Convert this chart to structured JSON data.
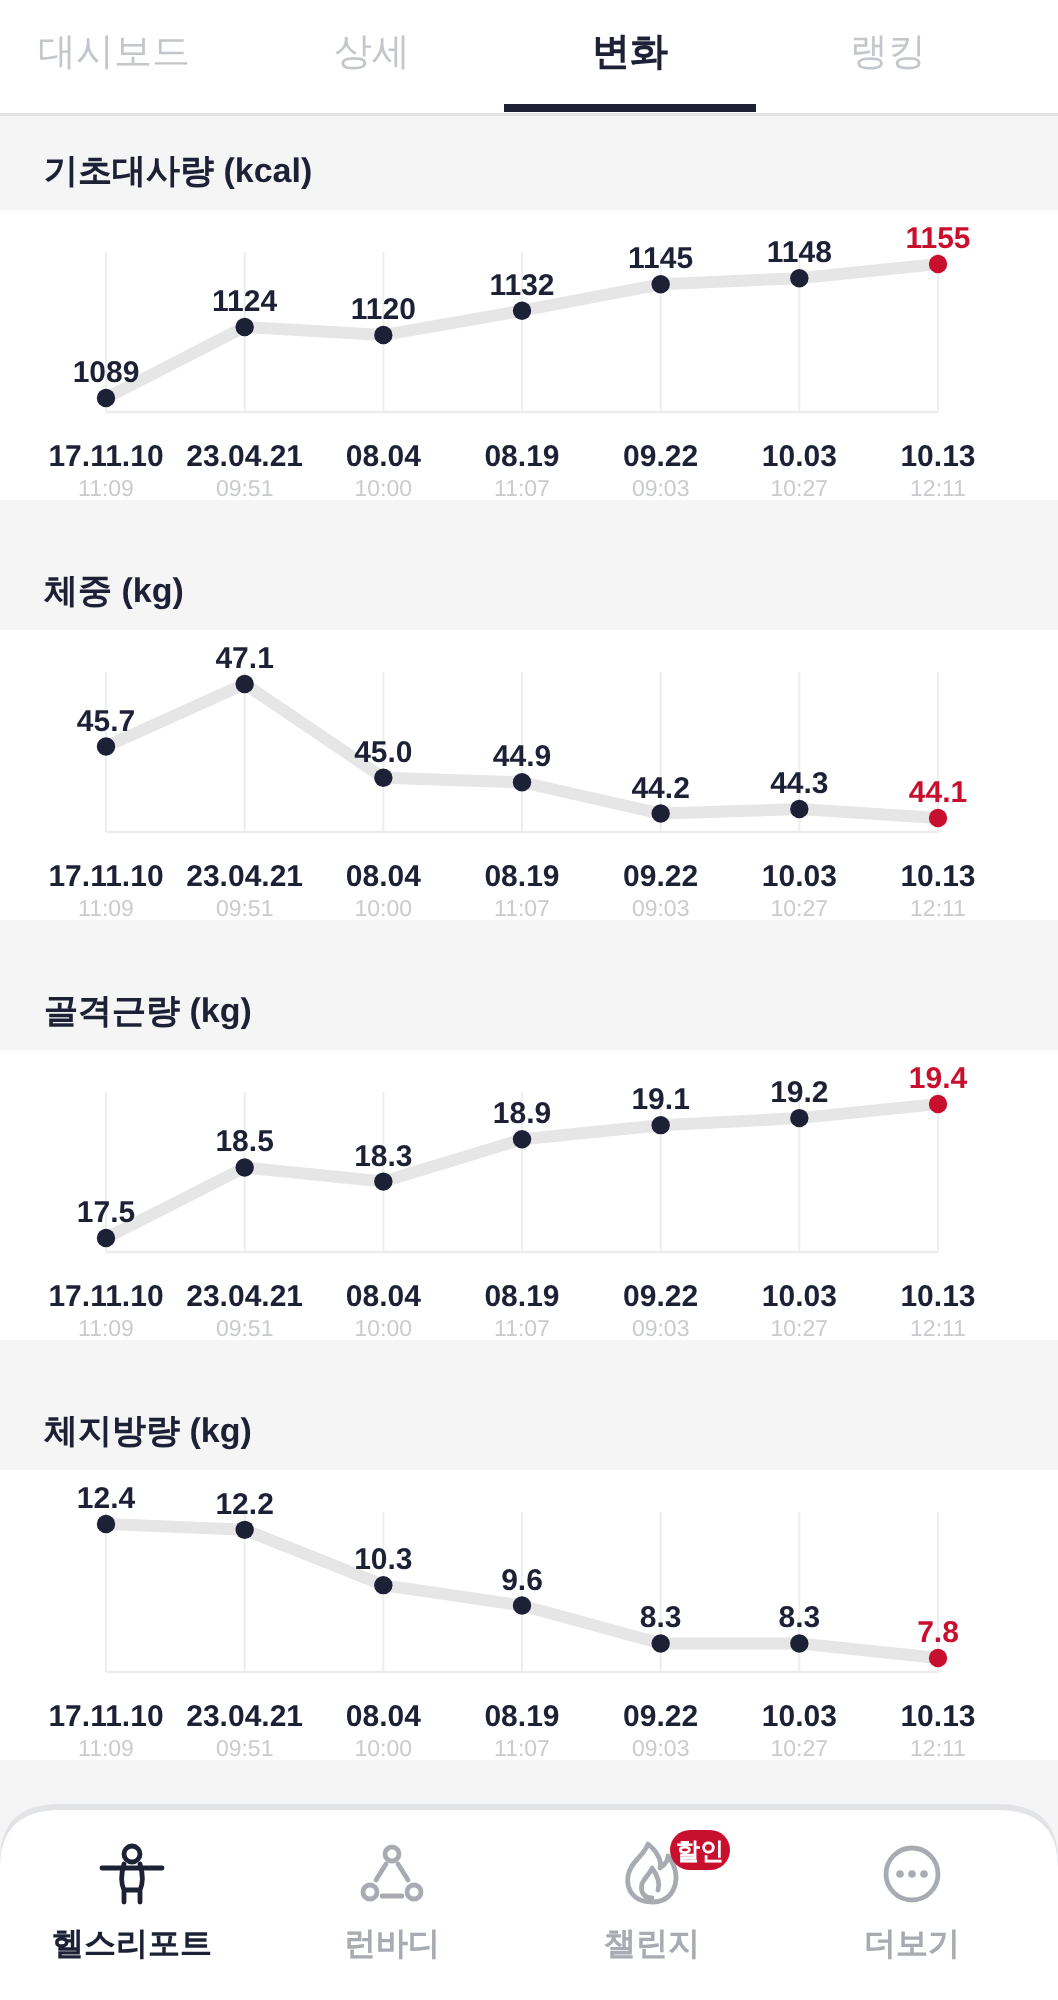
{
  "chart_data": [
    {
      "type": "other",
      "categories": [
        "대시보드",
        "상세",
        "변화",
        "랭킹"
      ]
    },
    {
      "type": "line",
      "title": "기초대사량 (kcal)",
      "categories": [
        "17.11.10 $_{11:09}$",
        "23.04.21 $_{09:51}$",
        "08.04 $_{10:00}$",
        "08.19 $_{11:07}$",
        "09.22 $_{09:03}$",
        "10.03 $_{10:27}$",
        "10.13 $_{12:11}$"
      ],
      "values": [
        1089,
        1124,
        1120,
        1132,
        1145,
        1148,
        1155
      ],
      "color": "#e6e6e6",
      "colors": [
        "#1d2136",
        "#1d2136",
        "#1d2136",
        "#1d2136",
        "#1d2136",
        "#1d2136",
        "#c8102e"
      ],
      "data_labels": true,
      "marker": "circle",
      "grid": "x"
    },
    {
      "type": "line",
      "title": "체중 (kg)",
      "categories": [
        "17.11.10 $_{11:09}$",
        "23.04.21 $_{09:51}$",
        "08.04 $_{10:00}$",
        "08.19 $_{11:07}$",
        "09.22 $_{09:03}$",
        "10.03 $_{10:27}$",
        "10.13 $_{12:11}$"
      ],
      "values": [
        45.7,
        47.1,
        45.0,
        44.9,
        44.2,
        44.3,
        44.1
      ],
      "value_labels": [
        "45.7",
        "47.1",
        "45.0",
        "44.9",
        "44.2",
        "44.3",
        "44.1"
      ],
      "color": "#e6e6e6",
      "colors": [
        "#1d2136",
        "#1d2136",
        "#1d2136",
        "#1d2136",
        "#1d2136",
        "#1d2136",
        "#c8102e"
      ],
      "marker": "circle",
      "grid": "x"
    },
    {
      "type": "line",
      "title": "골격근량 (kg)",
      "categories": [
        "17.11.10 $_{11:09}$",
        "23.04.21 $_{09:51}$",
        "08.04 $_{10:00}$",
        "08.19 $_{11:07}$",
        "09.22 $_{09:03}$",
        "10.03 $_{10:27}$",
        "10.13 $_{12:11}$"
      ],
      "values": [
        17.5,
        18.5,
        18.3,
        18.9,
        19.1,
        19.2,
        19.4
      ],
      "color": "#e6e6e6",
      "colors": [
        "#1d2136",
        "#1d2136",
        "#1d2136",
        "#1d2136",
        "#1d2136",
        "#1d2136",
        "#c8102e"
      ],
      "data_labels": true,
      "marker": "circle",
      "grid": "x"
    },
    {
      "type": "line",
      "title": "체지방량 (kg)",
      "categories": [
        "17.11.10 $_{11:09}$",
        "23.04.21 $_{09:51}$",
        "08.04 $_{10:00}$",
        "08.19 $_{11:07}$",
        "09.22 $_{09:03}$",
        "10.03 $_{10:27}$",
        "10.13 $_{12:11}$"
      ],
      "values": [
        12.4,
        12.2,
        10.3,
        9.6,
        8.3,
        8.3,
        7.8
      ],
      "color": "#e6e6e6",
      "colors": [
        "#1d2136",
        "#1d2136",
        "#1d2136",
        "#1d2136",
        "#1d2136",
        "#1d2136",
        "#c8102e"
      ],
      "data_labels": true,
      "marker": "circle",
      "grid": "x"
    },
    {
      "type": "other",
      "categories": [
        "헬스리포트",
        "런바디",
        "챌린지",
        "더보기"
      ],
      "annotations": [
        "할인"
      ]
    }
  ]
}
